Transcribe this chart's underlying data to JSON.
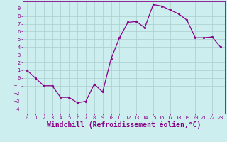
{
  "x": [
    0,
    1,
    2,
    3,
    4,
    5,
    6,
    7,
    8,
    9,
    10,
    11,
    12,
    13,
    14,
    15,
    16,
    17,
    18,
    19,
    20,
    21,
    22,
    23
  ],
  "y": [
    1.0,
    0.0,
    -1.0,
    -1.0,
    -2.5,
    -2.5,
    -3.2,
    -3.0,
    -0.8,
    -1.8,
    2.5,
    5.2,
    7.2,
    7.3,
    6.5,
    9.5,
    9.3,
    8.8,
    8.3,
    7.5,
    5.2,
    5.2,
    5.3,
    4.0
  ],
  "line_color": "#880088",
  "marker": "o",
  "marker_size": 1.8,
  "background_color": "#cceeee",
  "grid_color": "#aacccc",
  "xlabel": "Windchill (Refroidissement éolien,°C)",
  "xlim": [
    -0.5,
    23.5
  ],
  "ylim": [
    -4.6,
    9.9
  ],
  "yticks": [
    -4,
    -3,
    -2,
    -1,
    0,
    1,
    2,
    3,
    4,
    5,
    6,
    7,
    8,
    9
  ],
  "xticks": [
    0,
    1,
    2,
    3,
    4,
    5,
    6,
    7,
    8,
    9,
    10,
    11,
    12,
    13,
    14,
    15,
    16,
    17,
    18,
    19,
    20,
    21,
    22,
    23
  ],
  "tick_color": "#880088",
  "label_color": "#880088",
  "tick_fontsize": 5.0,
  "xlabel_fontsize": 7.0,
  "linewidth": 0.9
}
